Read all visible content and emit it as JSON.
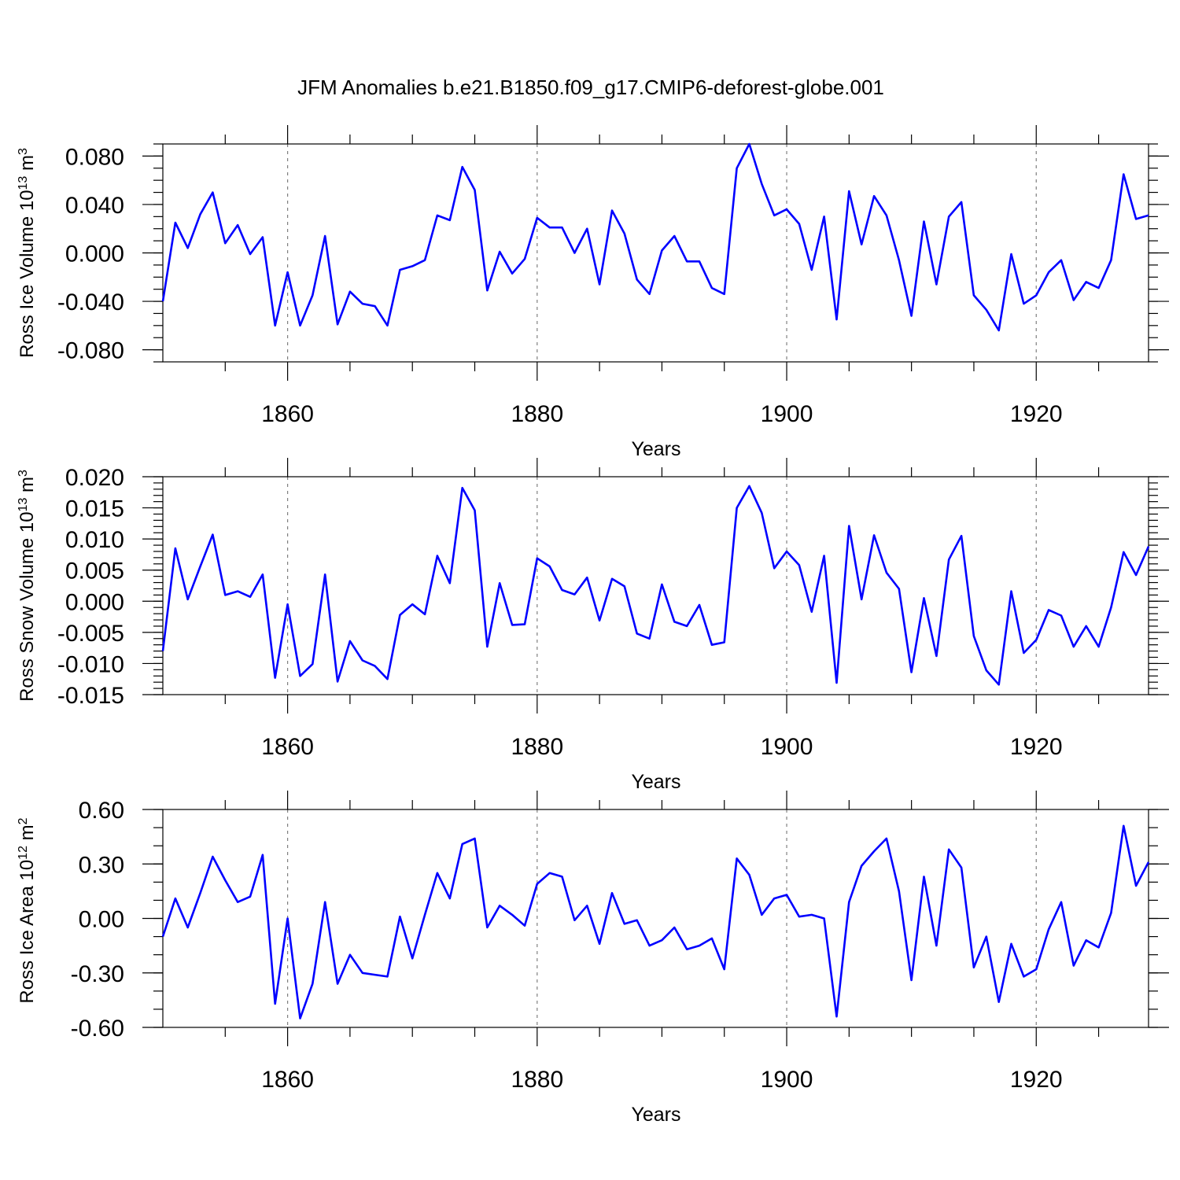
{
  "title": "JFM Anomalies b.e21.B1850.f09_g17.CMIP6-deforest-globe.001",
  "chart_data": [
    {
      "type": "line",
      "id": "ice-volume",
      "ylabel": "Ross Ice Volume 10",
      "ylabel_exp": "13",
      "ylabel_unit": " m",
      "ylabel_unit_exp": "3",
      "xlabel": "Years",
      "xlim": [
        1850,
        1929
      ],
      "ylim": [
        -0.09,
        0.09
      ],
      "xticks": [
        1860,
        1880,
        1900,
        1920
      ],
      "xtick_labels": [
        "1860",
        "1880",
        "1900",
        "1920"
      ],
      "yticks": [
        0.08,
        0.04,
        0.0,
        -0.04,
        -0.08
      ],
      "ytick_labels": [
        "0.080",
        "0.040",
        "0.000",
        "-0.040",
        "-0.080"
      ],
      "yminor_step": 0.01,
      "grid": "dashed vertical at major x ticks",
      "color": "#0000ff",
      "x": [
        1850,
        1851,
        1852,
        1853,
        1854,
        1855,
        1856,
        1857,
        1858,
        1859,
        1860,
        1861,
        1862,
        1863,
        1864,
        1865,
        1866,
        1867,
        1868,
        1869,
        1870,
        1871,
        1872,
        1873,
        1874,
        1875,
        1876,
        1877,
        1878,
        1879,
        1880,
        1881,
        1882,
        1883,
        1884,
        1885,
        1886,
        1887,
        1888,
        1889,
        1890,
        1891,
        1892,
        1893,
        1894,
        1895,
        1896,
        1897,
        1898,
        1899,
        1900,
        1901,
        1902,
        1903,
        1904,
        1905,
        1906,
        1907,
        1908,
        1909,
        1910,
        1911,
        1912,
        1913,
        1914,
        1915,
        1916,
        1917,
        1918,
        1919,
        1920,
        1921,
        1922,
        1923,
        1924,
        1925,
        1926,
        1927,
        1928,
        1929
      ],
      "values": [
        -0.04,
        0.025,
        0.004,
        0.032,
        0.05,
        0.008,
        0.023,
        -0.001,
        0.013,
        -0.06,
        -0.016,
        -0.06,
        -0.035,
        0.014,
        -0.059,
        -0.032,
        -0.042,
        -0.044,
        -0.06,
        -0.014,
        -0.011,
        -0.006,
        0.031,
        0.027,
        0.071,
        0.052,
        -0.031,
        0.001,
        -0.017,
        -0.005,
        0.029,
        0.021,
        0.021,
        0.0,
        0.02,
        -0.026,
        0.035,
        0.016,
        -0.022,
        -0.034,
        0.002,
        0.014,
        -0.007,
        -0.007,
        -0.029,
        -0.034,
        0.07,
        0.09,
        0.057,
        0.031,
        0.036,
        0.024,
        -0.014,
        0.03,
        -0.055,
        0.051,
        0.007,
        0.047,
        0.031,
        -0.006,
        -0.052,
        0.026,
        -0.026,
        0.03,
        0.042,
        -0.035,
        -0.047,
        -0.064,
        -0.001,
        -0.042,
        -0.035,
        -0.016,
        -0.006,
        -0.039,
        -0.024,
        -0.029,
        -0.006,
        0.065,
        0.028,
        0.031
      ]
    },
    {
      "type": "line",
      "id": "snow-volume",
      "ylabel": "Ross Snow Volume 10",
      "ylabel_exp": "13",
      "ylabel_unit": " m",
      "ylabel_unit_exp": "3",
      "xlabel": "Years",
      "xlim": [
        1850,
        1929
      ],
      "ylim": [
        -0.015,
        0.02
      ],
      "xticks": [
        1860,
        1880,
        1900,
        1920
      ],
      "xtick_labels": [
        "1860",
        "1880",
        "1900",
        "1920"
      ],
      "yticks": [
        0.02,
        0.015,
        0.01,
        0.005,
        0.0,
        -0.005,
        -0.01,
        -0.015
      ],
      "ytick_labels": [
        "0.020",
        "0.015",
        "0.010",
        "0.005",
        "0.000",
        "-0.005",
        "-0.010",
        "-0.015"
      ],
      "yminor_step": 0.001,
      "grid": "dashed vertical at major x ticks",
      "color": "#0000ff",
      "x": [
        1850,
        1851,
        1852,
        1853,
        1854,
        1855,
        1856,
        1857,
        1858,
        1859,
        1860,
        1861,
        1862,
        1863,
        1864,
        1865,
        1866,
        1867,
        1868,
        1869,
        1870,
        1871,
        1872,
        1873,
        1874,
        1875,
        1876,
        1877,
        1878,
        1879,
        1880,
        1881,
        1882,
        1883,
        1884,
        1885,
        1886,
        1887,
        1888,
        1889,
        1890,
        1891,
        1892,
        1893,
        1894,
        1895,
        1896,
        1897,
        1898,
        1899,
        1900,
        1901,
        1902,
        1903,
        1904,
        1905,
        1906,
        1907,
        1908,
        1909,
        1910,
        1911,
        1912,
        1913,
        1914,
        1915,
        1916,
        1917,
        1918,
        1919,
        1920,
        1921,
        1922,
        1923,
        1924,
        1925,
        1926,
        1927,
        1928,
        1929
      ],
      "values": [
        -0.008,
        0.0085,
        0.0003,
        0.0056,
        0.0107,
        0.001,
        0.0016,
        0.0007,
        0.0043,
        -0.0123,
        -0.0005,
        -0.012,
        -0.0101,
        0.0043,
        -0.0129,
        -0.0064,
        -0.0095,
        -0.0104,
        -0.0125,
        -0.0022,
        -0.0005,
        -0.0021,
        0.0073,
        0.0029,
        0.0182,
        0.0146,
        -0.0073,
        0.0029,
        -0.0038,
        -0.0037,
        0.0069,
        0.0056,
        0.0018,
        0.0011,
        0.0038,
        -0.0031,
        0.0036,
        0.0024,
        -0.0052,
        -0.006,
        0.0027,
        -0.0033,
        -0.004,
        -0.0006,
        -0.007,
        -0.0066,
        0.015,
        0.0185,
        0.0142,
        0.0053,
        0.008,
        0.0058,
        -0.0017,
        0.0073,
        -0.0131,
        0.0121,
        0.0003,
        0.0106,
        0.0046,
        0.002,
        -0.0114,
        0.0005,
        -0.0088,
        0.0067,
        0.0105,
        -0.0056,
        -0.0111,
        -0.0134,
        0.0016,
        -0.0083,
        -0.0062,
        -0.0014,
        -0.0023,
        -0.0073,
        -0.004,
        -0.0073,
        -0.001,
        0.0079,
        0.0042,
        0.0088
      ]
    },
    {
      "type": "line",
      "id": "ice-area",
      "ylabel": "Ross Ice Area 10",
      "ylabel_exp": "12",
      "ylabel_unit": " m",
      "ylabel_unit_exp": "2",
      "xlabel": "Years",
      "xlim": [
        1850,
        1929
      ],
      "ylim": [
        -0.6,
        0.6
      ],
      "xticks": [
        1860,
        1880,
        1900,
        1920
      ],
      "xtick_labels": [
        "1860",
        "1880",
        "1900",
        "1920"
      ],
      "yticks": [
        0.6,
        0.3,
        0.0,
        -0.3,
        -0.6
      ],
      "ytick_labels": [
        "0.60",
        "0.30",
        "0.00",
        "-0.30",
        "-0.60"
      ],
      "yminor_step": 0.1,
      "grid": "dashed vertical at major x ticks",
      "color": "#0000ff",
      "x": [
        1850,
        1851,
        1852,
        1853,
        1854,
        1855,
        1856,
        1857,
        1858,
        1859,
        1860,
        1861,
        1862,
        1863,
        1864,
        1865,
        1866,
        1867,
        1868,
        1869,
        1870,
        1871,
        1872,
        1873,
        1874,
        1875,
        1876,
        1877,
        1878,
        1879,
        1880,
        1881,
        1882,
        1883,
        1884,
        1885,
        1886,
        1887,
        1888,
        1889,
        1890,
        1891,
        1892,
        1893,
        1894,
        1895,
        1896,
        1897,
        1898,
        1899,
        1900,
        1901,
        1902,
        1903,
        1904,
        1905,
        1906,
        1907,
        1908,
        1909,
        1910,
        1911,
        1912,
        1913,
        1914,
        1915,
        1916,
        1917,
        1918,
        1919,
        1920,
        1921,
        1922,
        1923,
        1924,
        1925,
        1926,
        1927,
        1928,
        1929
      ],
      "values": [
        -0.1,
        0.11,
        -0.05,
        0.14,
        0.34,
        0.21,
        0.09,
        0.12,
        0.35,
        -0.47,
        0.0,
        -0.55,
        -0.36,
        0.09,
        -0.36,
        -0.2,
        -0.3,
        -0.31,
        -0.32,
        0.01,
        -0.22,
        0.02,
        0.25,
        0.11,
        0.41,
        0.44,
        -0.05,
        0.07,
        0.02,
        -0.04,
        0.19,
        0.25,
        0.23,
        -0.01,
        0.07,
        -0.14,
        0.14,
        -0.03,
        -0.01,
        -0.15,
        -0.12,
        -0.05,
        -0.17,
        -0.15,
        -0.11,
        -0.28,
        0.33,
        0.24,
        0.02,
        0.11,
        0.13,
        0.01,
        0.02,
        0.0,
        -0.54,
        0.09,
        0.29,
        0.37,
        0.44,
        0.15,
        -0.34,
        0.23,
        -0.15,
        0.38,
        0.28,
        -0.27,
        -0.1,
        -0.46,
        -0.14,
        -0.32,
        -0.28,
        -0.06,
        0.09,
        -0.26,
        -0.12,
        -0.16,
        0.03,
        0.51,
        0.18,
        0.31
      ]
    }
  ]
}
